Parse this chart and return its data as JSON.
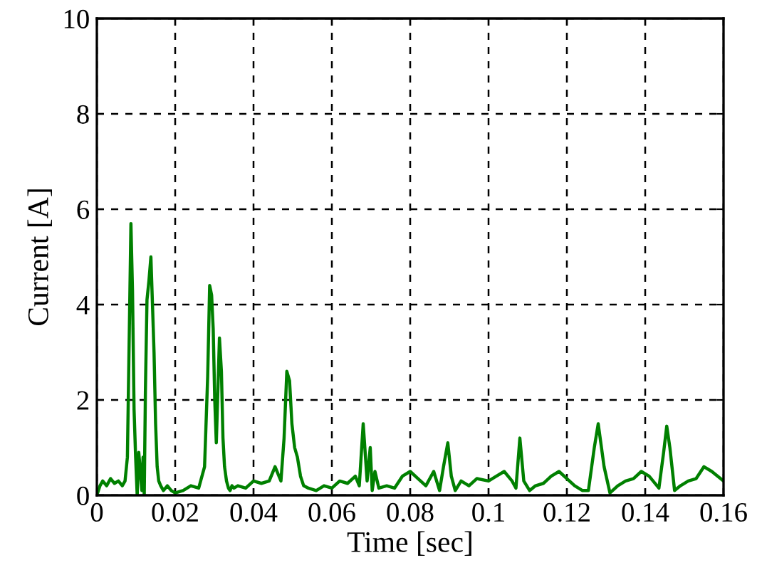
{
  "chart_data": {
    "type": "line",
    "xlabel": "Time [sec]",
    "ylabel": "Current [A]",
    "xlim": [
      0,
      0.16
    ],
    "ylim": [
      0,
      10
    ],
    "xticks": [
      0,
      0.02,
      0.04,
      0.06,
      0.08,
      0.1,
      0.12,
      0.14,
      0.16
    ],
    "yticks": [
      0,
      2,
      4,
      6,
      8,
      10
    ],
    "grid": true,
    "line_style": "solid",
    "marker": "none",
    "series": [
      {
        "color": "#008000",
        "x": [
          0,
          0.0008,
          0.0015,
          0.0025,
          0.0035,
          0.0045,
          0.0055,
          0.0065,
          0.0072,
          0.0078,
          0.0083,
          0.0087,
          0.0091,
          0.0095,
          0.0099,
          0.0103,
          0.0107,
          0.0111,
          0.0115,
          0.0118,
          0.0121,
          0.0124,
          0.0128,
          0.0133,
          0.0138,
          0.0142,
          0.0146,
          0.015,
          0.0154,
          0.0158,
          0.0163,
          0.017,
          0.018,
          0.019,
          0.02,
          0.022,
          0.024,
          0.026,
          0.0275,
          0.0283,
          0.0288,
          0.0293,
          0.0297,
          0.0301,
          0.0305,
          0.0309,
          0.0313,
          0.0318,
          0.0322,
          0.0326,
          0.0331,
          0.0336,
          0.034,
          0.0345,
          0.035,
          0.036,
          0.038,
          0.04,
          0.042,
          0.044,
          0.0455,
          0.047,
          0.0478,
          0.0485,
          0.0492,
          0.0498,
          0.0505,
          0.0512,
          0.052,
          0.0528,
          0.054,
          0.056,
          0.058,
          0.06,
          0.062,
          0.064,
          0.066,
          0.067,
          0.068,
          0.069,
          0.0698,
          0.0703,
          0.071,
          0.072,
          0.074,
          0.076,
          0.078,
          0.08,
          0.082,
          0.084,
          0.086,
          0.0875,
          0.0885,
          0.0896,
          0.0905,
          0.0915,
          0.093,
          0.095,
          0.097,
          0.1,
          0.102,
          0.104,
          0.106,
          0.107,
          0.108,
          0.109,
          0.1105,
          0.112,
          0.114,
          0.116,
          0.118,
          0.12,
          0.122,
          0.124,
          0.1255,
          0.127,
          0.128,
          0.1295,
          0.131,
          0.133,
          0.135,
          0.137,
          0.139,
          0.141,
          0.1435,
          0.1447,
          0.1455,
          0.1463,
          0.1475,
          0.149,
          0.151,
          0.153,
          0.155,
          0.157,
          0.16
        ],
        "values": [
          0,
          0.2,
          0.3,
          0.2,
          0.35,
          0.25,
          0.3,
          0.2,
          0.3,
          0.8,
          3.5,
          5.7,
          4.3,
          1.8,
          0.8,
          0,
          0.9,
          0.5,
          0.1,
          0.8,
          0,
          2.2,
          4.1,
          4.5,
          5.0,
          4.0,
          3.0,
          1.5,
          0.6,
          0.3,
          0.2,
          0.1,
          0.2,
          0.1,
          0.05,
          0.1,
          0.2,
          0.15,
          0.6,
          2.5,
          4.4,
          4.2,
          3.5,
          2.0,
          1.1,
          2.2,
          3.3,
          2.6,
          1.2,
          0.6,
          0.3,
          0.15,
          0.1,
          0.2,
          0.15,
          0.2,
          0.15,
          0.3,
          0.25,
          0.3,
          0.6,
          0.3,
          1.2,
          2.6,
          2.4,
          1.5,
          1.0,
          0.8,
          0.4,
          0.2,
          0.15,
          0.1,
          0.2,
          0.15,
          0.3,
          0.25,
          0.4,
          0.2,
          1.5,
          0.3,
          1.0,
          0.1,
          0.5,
          0.15,
          0.2,
          0.15,
          0.4,
          0.5,
          0.35,
          0.2,
          0.5,
          0.1,
          0.6,
          1.1,
          0.4,
          0.1,
          0.3,
          0.2,
          0.35,
          0.3,
          0.4,
          0.5,
          0.3,
          0.15,
          1.2,
          0.3,
          0.1,
          0.2,
          0.25,
          0.4,
          0.5,
          0.35,
          0.2,
          0.1,
          0.1,
          1.0,
          1.5,
          0.6,
          0.05,
          0.2,
          0.3,
          0.35,
          0.5,
          0.4,
          0.15,
          0.9,
          1.45,
          1.0,
          0.1,
          0.2,
          0.3,
          0.35,
          0.6,
          0.5,
          0.3
        ]
      }
    ]
  }
}
